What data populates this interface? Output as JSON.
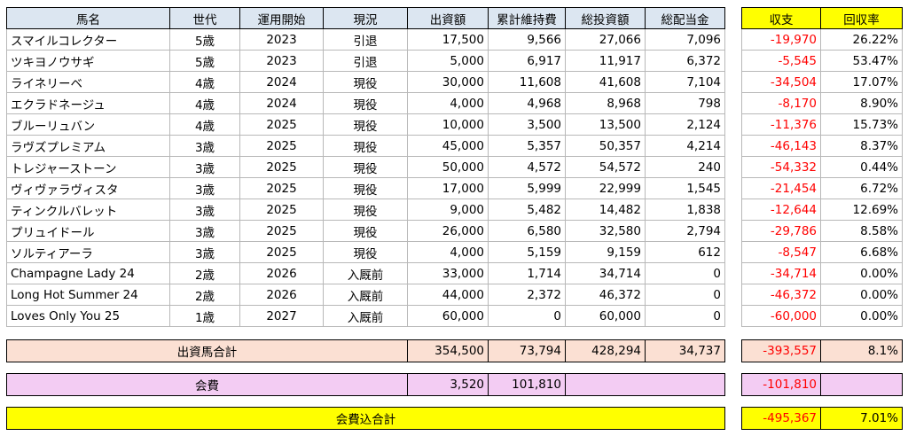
{
  "table": {
    "header": [
      "馬名",
      "世代",
      "運用開始",
      "現況",
      "出資額",
      "累計維持費",
      "総投資額",
      "総配当金"
    ],
    "rows": [
      [
        "スマイルコレクター",
        "5歳",
        "2023",
        "引退",
        "17,500",
        "9,566",
        "27,066",
        "7,096"
      ],
      [
        "ツキヨノウサギ",
        "5歳",
        "2023",
        "引退",
        "5,000",
        "6,917",
        "11,917",
        "6,372"
      ],
      [
        "ライネリーベ",
        "4歳",
        "2024",
        "現役",
        "30,000",
        "11,608",
        "41,608",
        "7,104"
      ],
      [
        "エクラドネージュ",
        "4歳",
        "2024",
        "現役",
        "4,000",
        "4,968",
        "8,968",
        "798"
      ],
      [
        "ブルーリュバン",
        "4歳",
        "2025",
        "現役",
        "10,000",
        "3,500",
        "13,500",
        "2,124"
      ],
      [
        "ラヴズプレミアム",
        "3歳",
        "2025",
        "現役",
        "45,000",
        "5,357",
        "50,357",
        "4,214"
      ],
      [
        "トレジャーストーン",
        "3歳",
        "2025",
        "現役",
        "50,000",
        "4,572",
        "54,572",
        "240"
      ],
      [
        "ヴィヴァラヴィスタ",
        "3歳",
        "2025",
        "現役",
        "17,000",
        "5,999",
        "22,999",
        "1,545"
      ],
      [
        "ティンクルバレット",
        "3歳",
        "2025",
        "現役",
        "9,000",
        "5,482",
        "14,482",
        "1,838"
      ],
      [
        "プリュイドール",
        "3歳",
        "2025",
        "現役",
        "26,000",
        "6,580",
        "32,580",
        "2,794"
      ],
      [
        "ソルティアーラ",
        "3歳",
        "2025",
        "現役",
        "4,000",
        "5,159",
        "9,159",
        "612"
      ],
      [
        "Champagne Lady 24",
        "2歳",
        "2026",
        "入厩前",
        "33,000",
        "1,714",
        "34,714",
        "0"
      ],
      [
        "Long Hot Summer 24",
        "2歳",
        "2026",
        "入厩前",
        "44,000",
        "2,372",
        "46,372",
        "0"
      ],
      [
        "Loves Only You 25",
        "1歳",
        "2027",
        "入厩前",
        "60,000",
        "0",
        "60,000",
        "0"
      ]
    ]
  },
  "side_table": {
    "header": [
      "収支",
      "回収率"
    ],
    "rows": [
      [
        "-19,970",
        "26.22%"
      ],
      [
        "-5,545",
        "53.47%"
      ],
      [
        "-34,504",
        "17.07%"
      ],
      [
        "-8,170",
        "8.90%"
      ],
      [
        "-11,376",
        "15.73%"
      ],
      [
        "-46,143",
        "8.37%"
      ],
      [
        "-54,332",
        "0.44%"
      ],
      [
        "-21,454",
        "6.72%"
      ],
      [
        "-12,644",
        "12.69%"
      ],
      [
        "-29,786",
        "8.58%"
      ],
      [
        "-8,547",
        "6.68%"
      ],
      [
        "-34,714",
        "0.00%"
      ],
      [
        "-46,372",
        "0.00%"
      ],
      [
        "-60,000",
        "0.00%"
      ]
    ]
  },
  "totals": [
    {
      "label": "出資馬合計",
      "values": [
        "354,500",
        "73,794",
        "428,294",
        "34,737"
      ],
      "balance": "-393,557",
      "rate": "8.1%"
    },
    {
      "label": "会費",
      "values": [
        "3,520",
        "101,810"
      ],
      "balance": "-101,810"
    },
    {
      "label": "会費込合計",
      "balance": "-495,367",
      "rate": "7.01%"
    }
  ]
}
